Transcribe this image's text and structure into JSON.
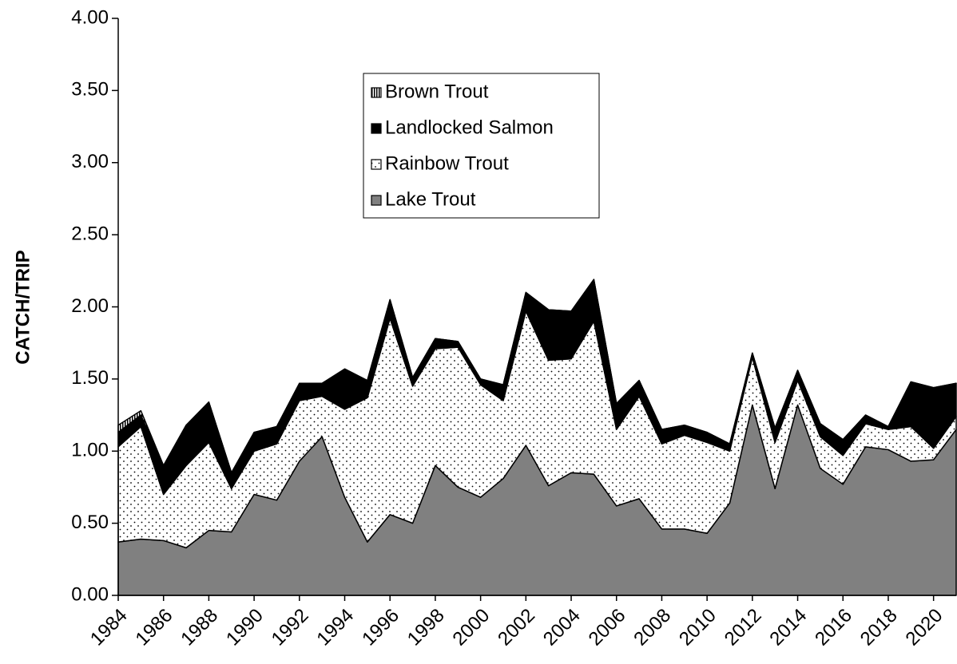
{
  "chart_data": {
    "type": "stacked_area",
    "y_label": "CATCH/TRIP",
    "x": [
      1984,
      1985,
      1986,
      1987,
      1988,
      1989,
      1990,
      1991,
      1992,
      1993,
      1994,
      1995,
      1996,
      1997,
      1998,
      1999,
      2000,
      2001,
      2002,
      2003,
      2004,
      2005,
      2006,
      2007,
      2008,
      2009,
      2010,
      2011,
      2012,
      2013,
      2014,
      2015,
      2016,
      2017,
      2018,
      2019,
      2020,
      2021
    ],
    "xlim": [
      1984,
      2021
    ],
    "xticks": [
      1984,
      1986,
      1988,
      1990,
      1992,
      1994,
      1996,
      1998,
      2000,
      2002,
      2004,
      2006,
      2008,
      2010,
      2012,
      2014,
      2016,
      2018,
      2020
    ],
    "ylim": [
      0,
      4
    ],
    "yticks": [
      {
        "value": 0,
        "label": "0.00"
      },
      {
        "value": 0.5,
        "label": "0.50"
      },
      {
        "value": 1,
        "label": "1.00"
      },
      {
        "value": 1.5,
        "label": "1.50"
      },
      {
        "value": 2,
        "label": "2.00"
      },
      {
        "value": 2.5,
        "label": "2.50"
      },
      {
        "value": 3,
        "label": "3.00"
      },
      {
        "value": 3.5,
        "label": "3.50"
      },
      {
        "value": 4,
        "label": "4.00"
      }
    ],
    "series": [
      {
        "name": "Lake Trout",
        "color": "#808080",
        "values": [
          0.37,
          0.39,
          0.38,
          0.33,
          0.45,
          0.44,
          0.7,
          0.66,
          0.93,
          1.1,
          0.68,
          0.37,
          0.56,
          0.5,
          0.9,
          0.75,
          0.68,
          0.81,
          1.04,
          0.76,
          0.85,
          0.84,
          0.62,
          0.67,
          0.46,
          0.46,
          0.43,
          0.64,
          1.32,
          0.74,
          1.32,
          0.88,
          0.77,
          1.03,
          1.01,
          0.93,
          0.94,
          1.15
        ]
      },
      {
        "name": "Rainbow Trout",
        "color": "#ffffff",
        "pattern": "dots",
        "values": [
          0.66,
          0.78,
          0.32,
          0.57,
          0.61,
          0.3,
          0.3,
          0.39,
          0.42,
          0.28,
          0.61,
          1.0,
          1.36,
          0.95,
          0.81,
          0.97,
          0.78,
          0.54,
          0.93,
          0.87,
          0.79,
          1.06,
          0.53,
          0.71,
          0.59,
          0.65,
          0.63,
          0.36,
          0.33,
          0.32,
          0.17,
          0.22,
          0.2,
          0.16,
          0.14,
          0.24,
          0.08,
          0.09
        ]
      },
      {
        "name": "Landlocked Salmon",
        "color": "#000000",
        "values": [
          0.1,
          0.08,
          0.2,
          0.28,
          0.28,
          0.11,
          0.13,
          0.12,
          0.12,
          0.09,
          0.27,
          0.12,
          0.13,
          0.06,
          0.07,
          0.04,
          0.04,
          0.11,
          0.13,
          0.35,
          0.33,
          0.29,
          0.18,
          0.11,
          0.1,
          0.07,
          0.07,
          0.05,
          0.03,
          0.1,
          0.07,
          0.09,
          0.11,
          0.06,
          0.02,
          0.31,
          0.42,
          0.23
        ]
      },
      {
        "name": "Brown Trout",
        "color": "#ffffff",
        "pattern": "stripes",
        "values": [
          0.05,
          0.03,
          0,
          0,
          0,
          0,
          0,
          0,
          0,
          0,
          0.01,
          0,
          0,
          0,
          0,
          0,
          0,
          0,
          0,
          0,
          0,
          0,
          0,
          0,
          0,
          0,
          0,
          0,
          0,
          0,
          0,
          0,
          0,
          0,
          0,
          0,
          0,
          0
        ]
      }
    ]
  }
}
